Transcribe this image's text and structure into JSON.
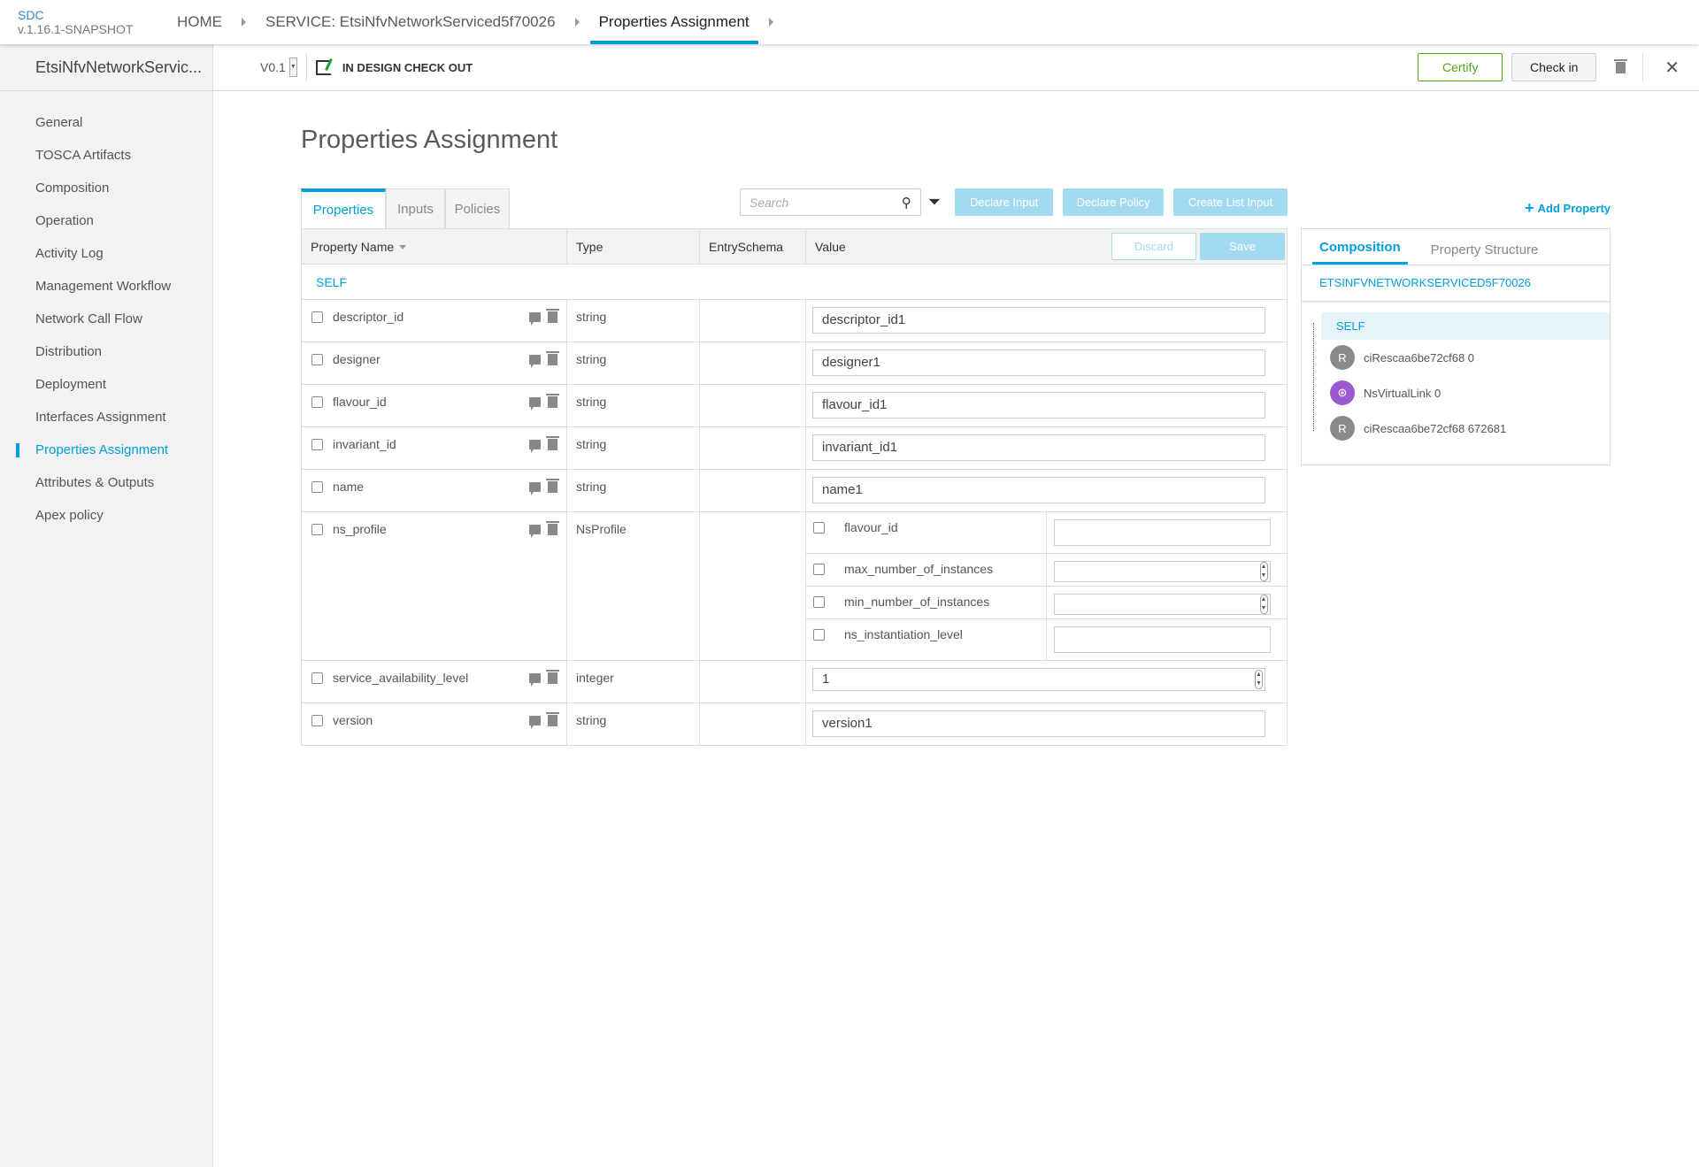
{
  "header": {
    "logo": "SDC",
    "version": "v.1.16.1-SNAPSHOT",
    "breadcrumbs": [
      "HOME",
      "SERVICE: EtsiNfvNetworkServiced5f70026",
      "Properties Assignment"
    ]
  },
  "subbar": {
    "service_name": "EtsiNfvNetworkServic...",
    "version": "V0.1",
    "status": "IN DESIGN CHECK OUT",
    "certify": "Certify",
    "check_in": "Check in"
  },
  "sidebar": {
    "items": [
      {
        "label": "General"
      },
      {
        "label": "TOSCA Artifacts"
      },
      {
        "label": "Composition"
      },
      {
        "label": "Operation"
      },
      {
        "label": "Activity Log"
      },
      {
        "label": "Management Workflow"
      },
      {
        "label": "Network Call Flow"
      },
      {
        "label": "Distribution"
      },
      {
        "label": "Deployment"
      },
      {
        "label": "Interfaces Assignment"
      },
      {
        "label": "Properties Assignment",
        "active": true
      },
      {
        "label": "Attributes & Outputs"
      },
      {
        "label": "Apex policy"
      }
    ]
  },
  "main": {
    "title": "Properties Assignment",
    "tabs": [
      "Properties",
      "Inputs",
      "Policies"
    ],
    "search_placeholder": "Search",
    "buttons": {
      "declare_input": "Declare Input",
      "declare_policy": "Declare Policy",
      "create_list_input": "Create List Input",
      "add_property": "Add Property",
      "discard": "Discard",
      "save": "Save"
    },
    "columns": [
      "Property Name",
      "Type",
      "EntrySchema",
      "Value"
    ],
    "group": "SELF",
    "rows": [
      {
        "name": "descriptor_id",
        "type": "string",
        "value": "descriptor_id1"
      },
      {
        "name": "designer",
        "type": "string",
        "value": "designer1"
      },
      {
        "name": "flavour_id",
        "type": "string",
        "value": "flavour_id1"
      },
      {
        "name": "invariant_id",
        "type": "string",
        "value": "invariant_id1"
      },
      {
        "name": "name",
        "type": "string",
        "value": "name1"
      },
      {
        "name": "ns_profile",
        "type": "NsProfile",
        "sub": [
          {
            "name": "flavour_id",
            "value": ""
          },
          {
            "name": "max_number_of_instances",
            "value": ""
          },
          {
            "name": "min_number_of_instances",
            "value": ""
          },
          {
            "name": "ns_instantiation_level",
            "value": ""
          }
        ]
      },
      {
        "name": "service_availability_level",
        "type": "integer",
        "value": "1"
      },
      {
        "name": "version",
        "type": "string",
        "value": "version1"
      }
    ]
  },
  "right_panel": {
    "tabs": [
      "Composition",
      "Property Structure"
    ],
    "service": "ETSINFVNETWORKSERVICED5F70026",
    "tree": [
      {
        "label": "SELF"
      },
      {
        "label": "ciRescaa6be72cf68 0",
        "avatar": "R"
      },
      {
        "label": "NsVirtualLink 0"
      },
      {
        "label": "ciRescaa6be72cf68 672681",
        "avatar": "R"
      }
    ]
  },
  "colors": {
    "accent": "#009fdb",
    "certify": "#4fa713",
    "vl_icon": "#9b59d0"
  }
}
